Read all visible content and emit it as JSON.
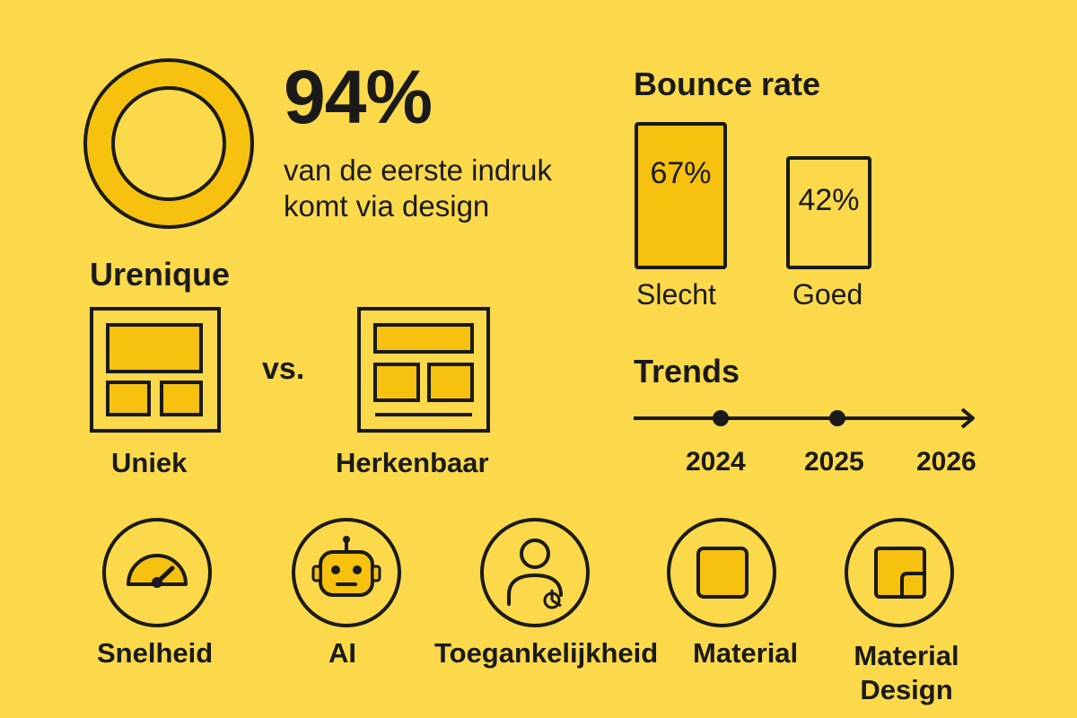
{
  "stat": {
    "value": "94%",
    "caption_line1": "van de eerste indruk",
    "caption_line2": "komt via design"
  },
  "bounce": {
    "title": "Bounce rate",
    "bars": [
      {
        "label": "Slecht",
        "value_text": "67%",
        "value": 67
      },
      {
        "label": "Goed",
        "value_text": "42%",
        "value": 42
      }
    ]
  },
  "comparison": {
    "title": "Urenique",
    "left_label": "Uniek",
    "vs": "vs.",
    "right_label": "Herkenbaar"
  },
  "trends": {
    "title": "Trends",
    "years": [
      "2024",
      "2025",
      "2026"
    ]
  },
  "icons": [
    {
      "label": "Snelheid",
      "icon": "speedometer-icon"
    },
    {
      "label": "AI",
      "icon": "robot-icon"
    },
    {
      "label": "Toegankelijkheid",
      "icon": "accessibility-person-icon"
    },
    {
      "label": "Material",
      "icon": "square-icon"
    },
    {
      "label_line1": "Material",
      "label_line2": "Design",
      "icon": "material-design-icon"
    }
  ],
  "colors": {
    "background": "#FBD94A",
    "accent": "#F6C20F",
    "ink": "#1A1A1A"
  }
}
